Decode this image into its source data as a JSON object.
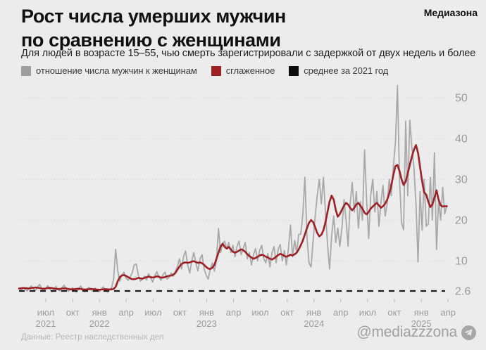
{
  "header": {
    "title_line1": "Рост числа умерших мужчин",
    "title_line2": "по сравнению с женщинами",
    "brand": "Медиазона",
    "subtitle": "Для людей в возрасте 15–55, чью смерть зарегистрировали с задержкой от двух недель и более"
  },
  "legend": [
    {
      "label": "отношение числа мужчин к женщинам",
      "color": "#9e9e9e"
    },
    {
      "label": "сглаженное",
      "color": "#9d2025"
    },
    {
      "label": "среднее за 2021 год",
      "color": "#0d0d0d"
    }
  ],
  "footer": {
    "source": "Данные: Реестр наследственных дел",
    "handle": "@mediazzzona",
    "icon": "telegram-icon"
  },
  "chart_data": {
    "type": "line",
    "x_unit": "weeks, weekly data from April 2021 to April 2025",
    "grid": "horizontal dotted",
    "legend_position": "top",
    "y_axis_side": "right",
    "ylim": [
      2,
      54
    ],
    "y_ticks": [
      {
        "v": 2.6,
        "label": "2.6",
        "gridline": false
      },
      {
        "v": 10,
        "label": "10",
        "gridline": true
      },
      {
        "v": 20,
        "label": "20",
        "gridline": true
      },
      {
        "v": 30,
        "label": "30",
        "gridline": true
      },
      {
        "v": 40,
        "label": "40",
        "gridline": true
      },
      {
        "v": 50,
        "label": "50",
        "gridline": true
      }
    ],
    "baseline": {
      "value": 2.6,
      "label": "2.6",
      "name": "среднее за 2021 год",
      "color": "#1a1a1a",
      "style": "dashed"
    },
    "x_ticks": [
      {
        "t": 13.0,
        "label": "июл",
        "year": "2021"
      },
      {
        "t": 26.1,
        "label": "окт"
      },
      {
        "t": 39.1,
        "label": "янв",
        "year": "2022"
      },
      {
        "t": 52.1,
        "label": "апр"
      },
      {
        "t": 65.2,
        "label": "июл"
      },
      {
        "t": 78.2,
        "label": "окт"
      },
      {
        "t": 91.2,
        "label": "янв",
        "year": "2023"
      },
      {
        "t": 104.3,
        "label": "апр"
      },
      {
        "t": 117.3,
        "label": "июл"
      },
      {
        "t": 130.4,
        "label": "окт"
      },
      {
        "t": 143.4,
        "label": "янв",
        "year": "2024"
      },
      {
        "t": 156.4,
        "label": "апр"
      },
      {
        "t": 169.5,
        "label": "июл"
      },
      {
        "t": 182.5,
        "label": "окт"
      },
      {
        "t": 195.6,
        "label": "янв",
        "year": "2025"
      },
      {
        "t": 208.6,
        "label": "апр"
      }
    ],
    "series": [
      {
        "name": "отношение числа мужчин к женщинам",
        "color": "#a8a8a8",
        "width": 1.8,
        "values": [
          3.3,
          2.8,
          3.5,
          3.0,
          2.6,
          3.4,
          3.8,
          3.1,
          2.7,
          3.6,
          4.2,
          3.2,
          2.5,
          3.3,
          3.9,
          3.0,
          2.4,
          3.1,
          3.7,
          2.9,
          2.6,
          3.5,
          4.0,
          3.1,
          2.5,
          2.9,
          3.4,
          2.7,
          2.3,
          3.2,
          3.8,
          3.0,
          2.4,
          2.8,
          3.5,
          2.9,
          2.5,
          3.3,
          2.7,
          2.4,
          3.1,
          3.6,
          2.8,
          2.3,
          2.9,
          3.4,
          5.5,
          12.8,
          7.5,
          5.0,
          6.5,
          7.2,
          5.8,
          5.2,
          6.0,
          7.0,
          9.0,
          9.2,
          6.5,
          5.0,
          5.5,
          6.2,
          5.3,
          6.8,
          5.8,
          4.8,
          6.3,
          7.3,
          6.0,
          5.2,
          6.6,
          7.2,
          5.5,
          6.0,
          7.0,
          6.2,
          7.5,
          8.5,
          10.5,
          8.0,
          11.0,
          12.4,
          9.0,
          7.0,
          10.0,
          12.0,
          9.5,
          7.5,
          10.5,
          11.5,
          8.0,
          6.5,
          5.5,
          8.0,
          9.5,
          7.5,
          10.0,
          17.9,
          12.0,
          14.2,
          14.8,
          13.0,
          14.5,
          12.0,
          13.8,
          11.0,
          13.5,
          14.8,
          11.5,
          13.0,
          14.5,
          10.5,
          12.0,
          9.0,
          11.5,
          13.0,
          10.0,
          12.5,
          13.8,
          10.5,
          9.5,
          11.8,
          8.5,
          12.0,
          13.5,
          9.5,
          12.8,
          14.0,
          10.0,
          12.5,
          9.0,
          13.0,
          18.8,
          11.0,
          15.0,
          12.0,
          16.5,
          16.5,
          21.5,
          30.5,
          16.0,
          9.5,
          8.5,
          15.0,
          21.0,
          26.0,
          30.0,
          24.0,
          30.5,
          22.0,
          14.0,
          8.0,
          16.0,
          21.0,
          14.5,
          18.0,
          13.5,
          18.0,
          25.0,
          20.0,
          13.6,
          24.0,
          29.2,
          22.0,
          27.0,
          18.0,
          24.5,
          20.0,
          37.2,
          25.0,
          15.5,
          26.0,
          30.0,
          22.0,
          27.0,
          18.5,
          24.5,
          28.5,
          21.0,
          24.0,
          30.0,
          26.0,
          33.0,
          39.0,
          53.0,
          30.0,
          19.3,
          17.6,
          44.3,
          26.0,
          44.5,
          38.0,
          33.0,
          24.0,
          9.7,
          27.0,
          17.5,
          30.0,
          18.5,
          19.0,
          30.5,
          20.0,
          36.5,
          12.8,
          25.0,
          20.0,
          28.0,
          21.5,
          23.5
        ]
      },
      {
        "name": "сглаженное",
        "color": "#9d2025",
        "width": 2.6,
        "values": [
          3.2,
          3.25,
          3.3,
          3.3,
          3.25,
          3.2,
          3.3,
          3.4,
          3.45,
          3.4,
          3.3,
          3.2,
          3.15,
          3.2,
          3.3,
          3.35,
          3.3,
          3.2,
          3.1,
          3.05,
          3.1,
          3.2,
          3.25,
          3.2,
          3.1,
          3.0,
          3.0,
          3.05,
          3.1,
          3.15,
          3.1,
          3.0,
          2.95,
          3.0,
          3.05,
          3.1,
          3.05,
          3.0,
          2.95,
          2.9,
          2.95,
          3.0,
          3.05,
          3.0,
          2.95,
          3.0,
          3.1,
          3.6,
          5.0,
          6.0,
          6.4,
          6.5,
          6.3,
          6.0,
          5.7,
          5.5,
          5.5,
          5.6,
          5.8,
          5.7,
          5.6,
          5.8,
          6.0,
          6.1,
          6.0,
          5.9,
          6.0,
          6.2,
          6.1,
          5.9,
          5.9,
          6.0,
          6.2,
          6.3,
          6.4,
          6.6,
          7.0,
          7.8,
          8.6,
          9.2,
          9.5,
          9.6,
          9.5,
          9.6,
          9.8,
          9.9,
          9.7,
          9.5,
          9.6,
          9.4,
          9.0,
          8.5,
          8.1,
          8.0,
          8.3,
          9.0,
          10.5,
          12.0,
          13.5,
          14.2,
          13.4,
          13.0,
          13.4,
          12.8,
          12.2,
          12.0,
          12.2,
          12.5,
          12.8,
          12.6,
          12.2,
          11.6,
          11.2,
          10.8,
          10.5,
          10.7,
          11.0,
          11.3,
          11.5,
          11.3,
          11.0,
          10.8,
          10.5,
          10.3,
          10.6,
          11.0,
          11.4,
          11.7,
          11.5,
          11.2,
          11.0,
          11.2,
          11.5,
          11.3,
          11.6,
          12.0,
          12.8,
          13.8,
          15.0,
          16.5,
          18.0,
          19.3,
          20.0,
          19.5,
          18.2,
          16.8,
          16.0,
          16.4,
          17.5,
          19.5,
          22.0,
          24.5,
          26.0,
          25.0,
          22.5,
          20.8,
          21.5,
          22.5,
          23.5,
          24.2,
          23.8,
          23.0,
          22.4,
          23.0,
          23.8,
          24.2,
          23.5,
          22.8,
          21.8,
          21.4,
          22.0,
          22.8,
          23.3,
          23.8,
          24.2,
          23.6,
          23.0,
          23.4,
          24.0,
          25.0,
          26.5,
          28.5,
          31.0,
          33.2,
          33.5,
          32.0,
          30.0,
          28.6,
          29.5,
          31.5,
          33.5,
          35.5,
          37.2,
          38.4,
          36.5,
          33.0,
          29.5,
          26.8,
          26.2,
          24.5,
          23.2,
          23.8,
          25.5,
          27.3,
          25.0,
          23.6,
          23.3,
          23.4,
          23.4
        ]
      }
    ]
  }
}
